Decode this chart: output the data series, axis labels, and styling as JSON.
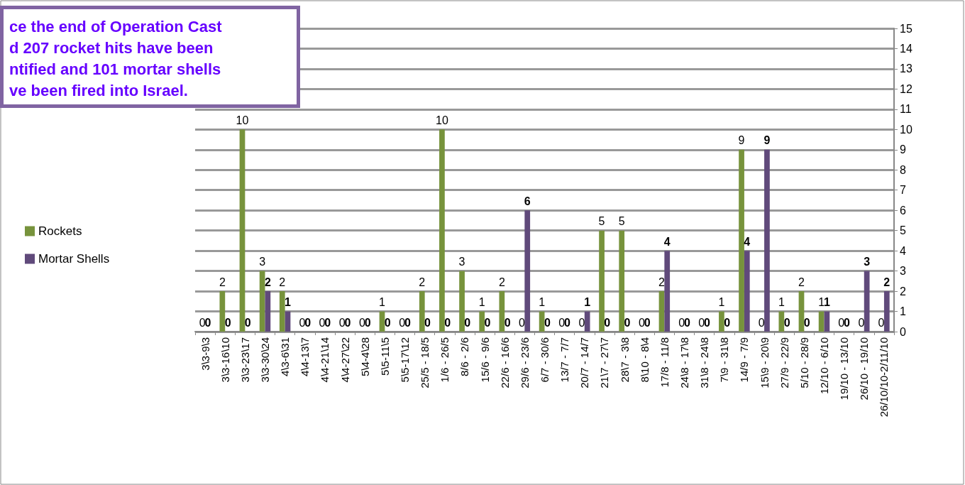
{
  "chart_data": {
    "type": "bar",
    "annotations": [
      "ce the end of Operation Cast\nd 207 rocket hits have been\nntified and 101 mortar shells\nve been fired into Israel."
    ],
    "categories": [
      "3\\3-9\\3",
      "3\\3-16\\10",
      "3\\3-23\\17",
      "3\\3-30\\24",
      "4\\3-6\\31",
      "4\\4-13\\7",
      "4\\4-21\\14",
      "4\\4-27\\22",
      "5\\4-4\\28",
      "5\\5-11\\5",
      "5\\5-17\\12",
      "25/5 - 18/5",
      "1/6 - 26/5",
      "8/6 - 2/6",
      "15/6 - 9/6",
      "22/6 - 16/6",
      "29/6 - 23/6",
      "6/7 - 30/6",
      "13/7 - 7/7",
      "20/7 - 14/7",
      "21\\7 - 27\\7",
      "28\\7 - 3\\8",
      "8\\10 - 8\\4",
      "17/8 - 11/8",
      "24\\8 - 17\\8",
      "31\\8 - 24\\8",
      "7\\9 - 31\\8",
      "14/9 - 7/9",
      "15\\9 - 20\\9",
      "27/9 - 22/9",
      "5/10 - 28/9",
      "12/10 - 6/10",
      "19/10 - 13/10",
      "26/10 - 19/10",
      "26/10/10-2/11/10"
    ],
    "series": [
      {
        "name": "Rockets",
        "color": "#77933c",
        "values": [
          0,
          2,
          10,
          3,
          2,
          0,
          0,
          0,
          0,
          1,
          0,
          2,
          10,
          3,
          1,
          2,
          0,
          1,
          0,
          0,
          5,
          5,
          0,
          2,
          0,
          0,
          1,
          9,
          0,
          1,
          2,
          1,
          0,
          0,
          0
        ]
      },
      {
        "name": "Mortar Shells",
        "color": "#604a7b",
        "values": [
          0,
          0,
          0,
          2,
          1,
          0,
          0,
          0,
          0,
          0,
          0,
          0,
          0,
          0,
          0,
          0,
          6,
          0,
          0,
          1,
          0,
          0,
          0,
          4,
          0,
          0,
          0,
          4,
          9,
          0,
          0,
          1,
          0,
          3,
          2
        ]
      }
    ],
    "ylim": [
      0,
      15
    ],
    "yticks": [
      0,
      1,
      2,
      3,
      4,
      5,
      6,
      7,
      8,
      9,
      10,
      11,
      12,
      13,
      14,
      15
    ],
    "grid": "y",
    "legend": "left",
    "data_labels": true
  }
}
